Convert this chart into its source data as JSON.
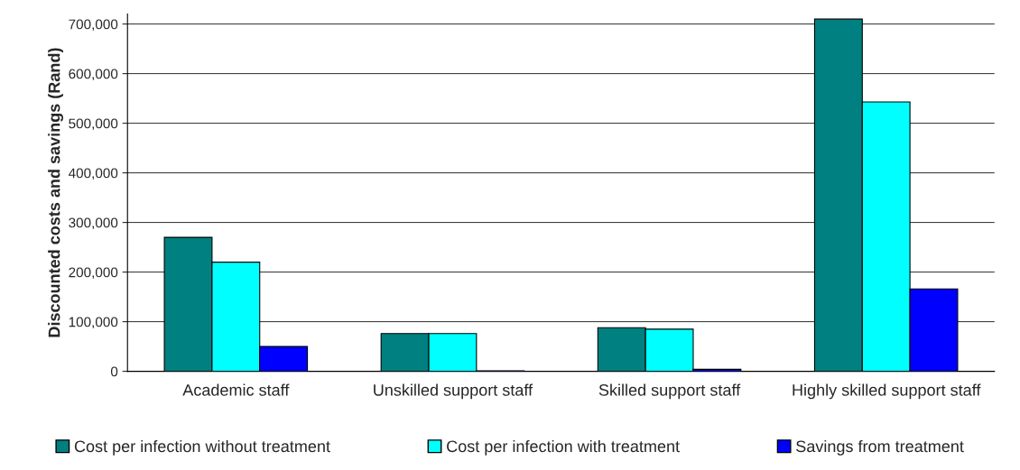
{
  "chart_data": {
    "type": "bar",
    "ylabel": "Discounted costs and savings (Rand)",
    "categories": [
      "Academic staff",
      "Unskilled support staff",
      "Skilled support staff",
      "Highly skilled support staff"
    ],
    "series": [
      {
        "name": "Cost per infection without treatment",
        "color": "#008080",
        "values": [
          270000,
          76000,
          88000,
          710000
        ]
      },
      {
        "name": "Cost per infection with treatment",
        "color": "#00ffff",
        "values": [
          220000,
          76000,
          85000,
          543000
        ]
      },
      {
        "name": "Savings from treatment",
        "color": "#0000ff",
        "values": [
          50000,
          1000,
          4000,
          166000
        ]
      }
    ],
    "ylim": [
      0,
      720000
    ],
    "yticks": [
      0,
      {
        "value": 100000,
        "label": "100,000"
      },
      {
        "value": 200000,
        "label": "200,000"
      },
      {
        "value": 300000,
        "label": "300,000"
      },
      {
        "value": 400000,
        "label": "400,000"
      },
      {
        "value": 500000,
        "label": "500,000"
      },
      {
        "value": 600000,
        "label": "600,000"
      },
      {
        "value": 700000,
        "label": "700,000"
      }
    ],
    "grid": "y",
    "legend": "bottom"
  }
}
